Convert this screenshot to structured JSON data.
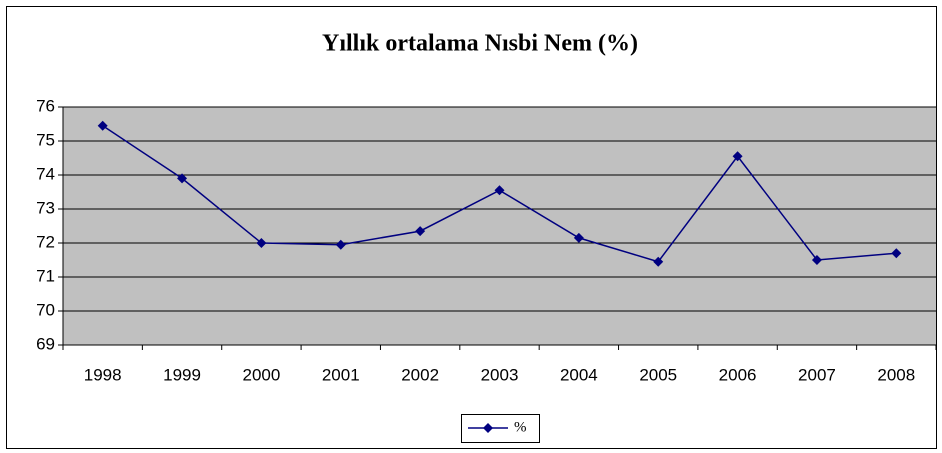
{
  "chart_data": {
    "type": "line",
    "title": "Yıllık ortalama Nısbi Nem (%)",
    "categories": [
      "1998",
      "1999",
      "2000",
      "2001",
      "2002",
      "2003",
      "2004",
      "2005",
      "2006",
      "2007",
      "2008"
    ],
    "series": [
      {
        "name": "%",
        "color": "#000080",
        "values": [
          75.45,
          73.9,
          72.0,
          71.95,
          72.35,
          73.55,
          72.15,
          71.45,
          74.55,
          71.5,
          71.7
        ]
      }
    ],
    "ylim": [
      69,
      76
    ],
    "yticks": [
      69,
      70,
      71,
      72,
      73,
      74,
      75,
      76
    ],
    "grid": true,
    "legend": "bottom",
    "plot_background": "#c0c0c0"
  }
}
